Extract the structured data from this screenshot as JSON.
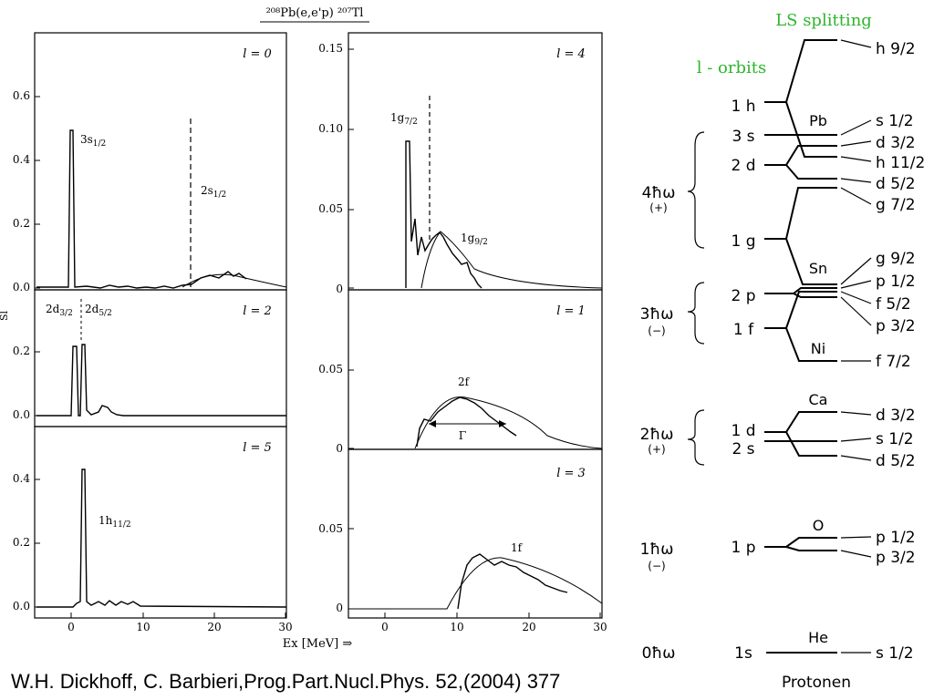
{
  "figure_title": "²⁰⁸Pb(e,e'p) ²⁰⁷Tl",
  "xlabel": "Ex [MeV] ⇒",
  "ylabel_fragment": "Sl",
  "citation": "W.H. Dickhoff, C. Barbieri,Prog.Part.Nucl.Phys. 52,(2004) 377",
  "colors": {
    "annotation": "#2db52d",
    "ink": "#000000"
  },
  "chart_data": [
    {
      "type": "line",
      "panel_label": "l = 0",
      "xlim": [
        -5,
        30
      ],
      "ylim": [
        0,
        0.7
      ],
      "xticks": [
        0,
        10,
        20,
        30
      ],
      "yticks": [
        0.0,
        0.2,
        0.4,
        0.6
      ],
      "peaks": [
        {
          "label": "3s1/2",
          "x": 0.2,
          "y": 0.49
        }
      ],
      "dashed_markers": [
        {
          "label": "2s1/2",
          "x": 16.5,
          "y": 0.53
        }
      ],
      "series": [
        {
          "x": [
            -5,
            0,
            5,
            10,
            14,
            16,
            18,
            20,
            22,
            24,
            26,
            28,
            30
          ],
          "values": [
            0.0,
            0.0,
            0.002,
            0.003,
            0.006,
            0.012,
            0.022,
            0.032,
            0.038,
            0.035,
            0.026,
            0.015,
            0.005
          ]
        }
      ]
    },
    {
      "type": "line",
      "panel_label": "l = 2",
      "xlim": [
        -5,
        30
      ],
      "ylim": [
        0,
        0.3
      ],
      "xticks": [
        0,
        10,
        20,
        30
      ],
      "yticks": [
        0.0,
        0.2
      ],
      "peaks": [
        {
          "label": "2d3/2",
          "x": 0.4,
          "y": 0.21
        },
        {
          "label": "2d5/2",
          "x": 1.6,
          "y": 0.21
        }
      ],
      "series": []
    },
    {
      "type": "line",
      "panel_label": "l = 5",
      "xlim": [
        -5,
        30
      ],
      "ylim": [
        0,
        0.5
      ],
      "xticks": [
        0,
        10,
        20,
        30
      ],
      "yticks": [
        0.0,
        0.2,
        0.4
      ],
      "xtick_labels": [
        "0",
        "10",
        "20",
        "30"
      ],
      "peaks": [
        {
          "label": "1h11/2",
          "x": 1.4,
          "y": 0.43
        }
      ],
      "series": []
    },
    {
      "type": "line",
      "panel_label": "l = 4",
      "xlim": [
        -5,
        30
      ],
      "ylim": [
        0,
        0.16
      ],
      "xticks": [
        0,
        10,
        20,
        30
      ],
      "yticks": [
        0,
        0.05,
        0.1,
        0.15
      ],
      "peaks": [
        {
          "label": "1g7/2",
          "x": 3.4,
          "y": 0.093
        }
      ],
      "dashed_markers": [
        {
          "x": 6.3,
          "y": 0.122
        }
      ],
      "bumps": [
        {
          "label": "1g9/2",
          "x": 9.0,
          "y": 0.038
        }
      ],
      "series": []
    },
    {
      "type": "line",
      "panel_label": "l = 1",
      "xlim": [
        -5,
        30
      ],
      "ylim": [
        0,
        0.1
      ],
      "xticks": [
        0,
        10,
        20,
        30
      ],
      "yticks": [
        0,
        0.05
      ],
      "bumps": [
        {
          "label": "2f",
          "x": 11,
          "y": 0.033
        }
      ],
      "width_arrow": {
        "label": "Γ",
        "x": [
          5,
          15
        ],
        "y": 0.016
      },
      "series": []
    },
    {
      "type": "line",
      "panel_label": "l = 3",
      "xlim": [
        -5,
        30
      ],
      "ylim": [
        0,
        0.1
      ],
      "xticks": [
        0,
        10,
        20,
        30
      ],
      "yticks": [
        0,
        0.05
      ],
      "xtick_labels": [
        "0",
        "10",
        "20",
        "30"
      ],
      "bumps": [
        {
          "label": "1f",
          "x": 16,
          "y": 0.033
        }
      ],
      "series": []
    }
  ],
  "shell_diagram": {
    "green_labels": {
      "ls": "LS splitting",
      "orbits": "l - orbits"
    },
    "footer": "Protonen",
    "groups": [
      {
        "label": "4ħω",
        "parity": "(+)"
      },
      {
        "label": "3ħω",
        "parity": "(−)"
      },
      {
        "label": "2ħω",
        "parity": "(+)"
      },
      {
        "label": "1ħω",
        "parity": "(−)"
      },
      {
        "label": "0ħω",
        "parity": ""
      }
    ],
    "orbits": [
      "1 h",
      "3 s",
      "2 d",
      "1 g",
      "2 p",
      "1 f",
      "1 d",
      "2 s",
      "1 p",
      "1s"
    ],
    "magic": [
      "Pb",
      "Sn",
      "Ni",
      "Ca",
      "O",
      "He"
    ],
    "levels": [
      "h 9/2",
      "s 1/2",
      "d 3/2",
      "h 11/2",
      "d 5/2",
      "g 7/2",
      "g 9/2",
      "p 1/2",
      "f 5/2",
      "p 3/2",
      "f 7/2",
      "d 3/2",
      "s 1/2",
      "d 5/2",
      "p 1/2",
      "p 3/2",
      "s 1/2"
    ]
  }
}
